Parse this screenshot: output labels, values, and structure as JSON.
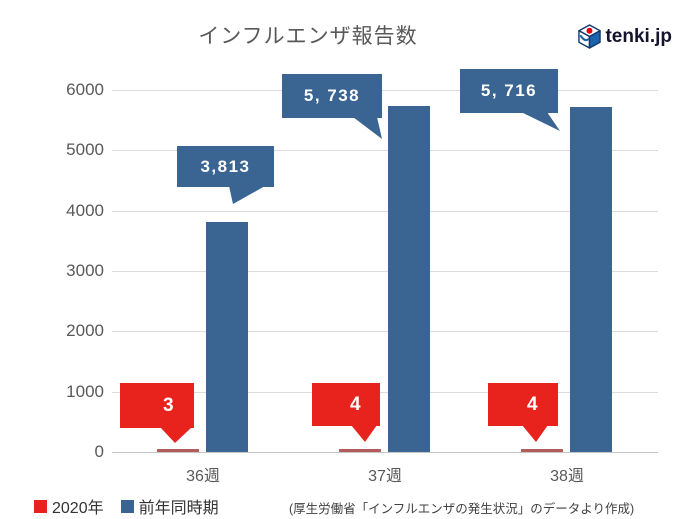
{
  "header": {
    "title": "インフルエンザ報告数",
    "logo_text": "tenki.jp"
  },
  "chart_data": {
    "type": "bar",
    "title": "インフルエンザ報告数",
    "categories": [
      "36週",
      "37週",
      "38週"
    ],
    "series": [
      {
        "name": "2020年",
        "color": "#e8231e",
        "bar_color": "#b25c5c",
        "values": [
          3,
          4,
          4
        ],
        "labels": [
          "3",
          "4",
          "4"
        ]
      },
      {
        "name": "前年同時期",
        "color": "#3a6492",
        "bar_color": "#3a6492",
        "values": [
          3813,
          5738,
          5716
        ],
        "labels": [
          "3,813",
          "5, 738",
          "5, 716"
        ]
      }
    ],
    "ylim": [
      0,
      6000
    ],
    "ytick_step": 1000,
    "yticks": [
      0,
      1000,
      2000,
      3000,
      4000,
      5000,
      6000
    ],
    "grid": true,
    "legend_position": "bottom-left"
  },
  "colors": {
    "series_2020": "#e8231e",
    "series_prev_year": "#3a6492",
    "gridline": "#dcdcdc",
    "axis_text": "#595959",
    "logo_red": "#e60012",
    "logo_blue": "#1b63ac"
  },
  "source_note": "(厚生労働省「インフルエンザの発生状況」のデータより作成)"
}
